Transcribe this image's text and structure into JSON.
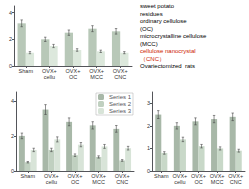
{
  "chart_data": [
    {
      "type": "bar",
      "categories": [
        "Sham",
        "OVX+\ncellu",
        "OVX+\nOC",
        "OVX+\nMCC",
        "OVX+\nCNC"
      ],
      "series": [
        {
          "color": "#b8c8b8",
          "values": [
            3.2,
            2.0,
            2.5,
            2.8,
            2.6
          ],
          "errors": [
            0.256,
            0.16,
            0.2,
            0.224,
            0.208
          ]
        },
        {
          "color": "#dce8dc",
          "values": [
            1.0,
            1.5,
            1.2,
            1.1,
            1.0
          ],
          "errors": [
            0.08,
            0.12,
            0.096,
            0.088,
            0.08
          ]
        }
      ],
      "ylim": [
        0,
        4.5
      ],
      "yticks": [
        0,
        2,
        4
      ],
      "grid": false,
      "annotations": [
        {
          "text": "sweet potato",
          "color": "#000000"
        },
        {
          "text": "residues",
          "color": "#000000"
        },
        {
          "text": "ordinary cellulose",
          "color": "#000000"
        },
        {
          "text": "(OC)",
          "color": "#000000"
        },
        {
          "text": "microcrystalline cellulose",
          "color": "#000000"
        },
        {
          "text": "(MCC)",
          "color": "#000000"
        },
        {
          "text": "cellulose nanocrystal",
          "color": "#cc2200"
        },
        {
          "text": "（CNC）",
          "color": "#cc2200"
        },
        {
          "text": "Ovariectomized  rats",
          "color": "#000000"
        }
      ]
    },
    {
      "type": "bar",
      "categories": [
        "Sham",
        "OVX+\ncellu",
        "OVX+\nOC",
        "OVX+\nMCC",
        "OVX+\nCNC"
      ],
      "series": [
        {
          "name": "Series 1",
          "color": "#a8b8a8",
          "values": [
            2.0,
            3.5,
            2.8,
            2.6,
            2.4
          ],
          "errors": [
            0.16,
            0.28,
            0.224,
            0.208,
            0.192
          ]
        },
        {
          "name": "Series 2",
          "color": "#c0d0c0",
          "values": [
            0.5,
            1.2,
            0.9,
            0.8,
            0.6
          ],
          "errors": [
            0.04,
            0.096,
            0.072,
            0.064,
            0.048
          ]
        },
        {
          "name": "Series 3",
          "color": "#d8e4d8",
          "values": [
            1.2,
            1.8,
            1.5,
            1.4,
            1.3
          ],
          "errors": [
            0.096,
            0.144,
            0.12,
            0.112,
            0.104
          ]
        }
      ],
      "ylim": [
        0,
        4.5
      ],
      "yticks": [
        0,
        2,
        4
      ],
      "grid": false,
      "legend": "upper right"
    },
    {
      "type": "bar",
      "categories": [
        "Sham",
        "OVX+\ncellu",
        "OVX+\nOC",
        "OVX+\nMCC",
        "OVX+\nCNC"
      ],
      "series": [
        {
          "color": "#a8b8a8",
          "values": [
            2.5,
            2.0,
            2.2,
            2.3,
            2.4
          ],
          "errors": [
            0.175,
            0.14,
            0.154,
            0.161,
            0.168
          ]
        },
        {
          "color": "#c8d8c8",
          "values": [
            0.8,
            1.4,
            1.1,
            1.0,
            0.9
          ],
          "errors": [
            0.056,
            0.098,
            0.077,
            0.07,
            0.063
          ]
        }
      ],
      "ylim": [
        0,
        3.5
      ],
      "yticks": [
        0,
        1,
        2,
        3
      ],
      "grid": false
    }
  ]
}
